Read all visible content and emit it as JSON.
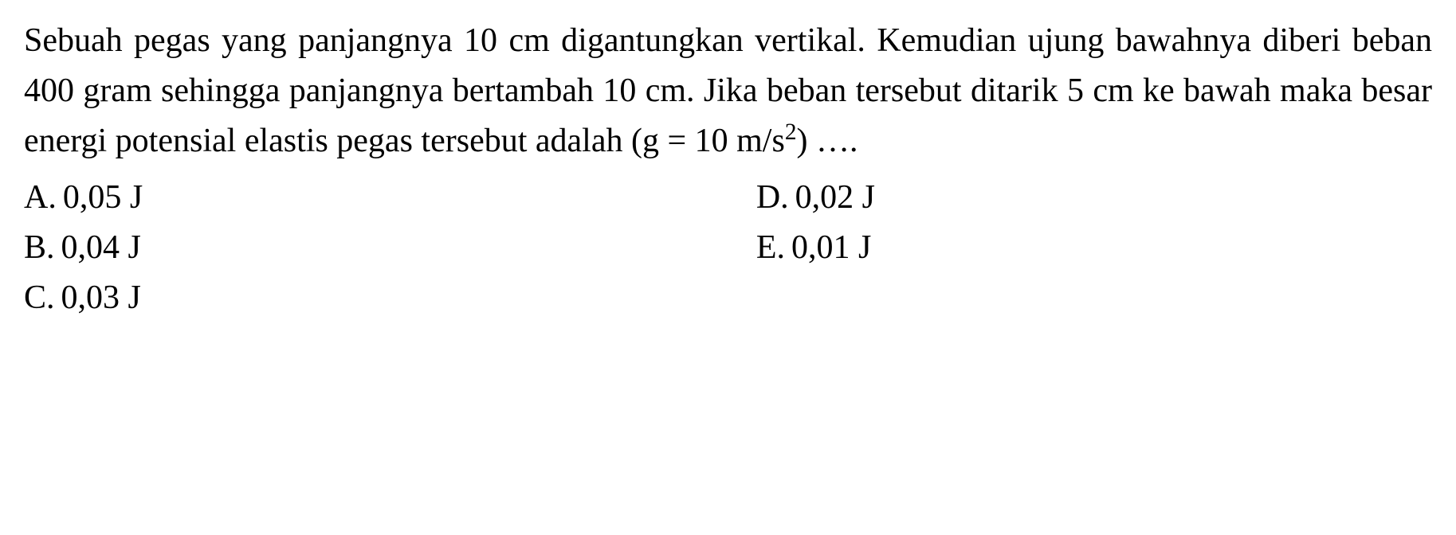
{
  "question": {
    "text_part1": "Sebuah pegas yang panjangnya 10 cm digantungkan vertikal. Kemudian ujung bawahnya diberi beban 400 gram sehingga panjangnya bertambah 10 cm. Jika beban tersebut ditarik 5 cm ke bawah maka besar energi potensial elastis pegas tersebut adalah (g = 10 m/s",
    "text_superscript": "2",
    "text_part2": ") …."
  },
  "options": {
    "left": [
      {
        "label": "A.",
        "value": "0,05 J"
      },
      {
        "label": "B.",
        "value": "0,04 J"
      },
      {
        "label": "C.",
        "value": "0,03 J"
      }
    ],
    "right": [
      {
        "label": "D.",
        "value": "0,02 J"
      },
      {
        "label": "E.",
        "value": "0,01 J"
      }
    ]
  },
  "styling": {
    "font_family": "Times New Roman",
    "font_size_pt": 42,
    "text_color": "#000000",
    "background_color": "#ffffff",
    "line_height": 1.5
  }
}
